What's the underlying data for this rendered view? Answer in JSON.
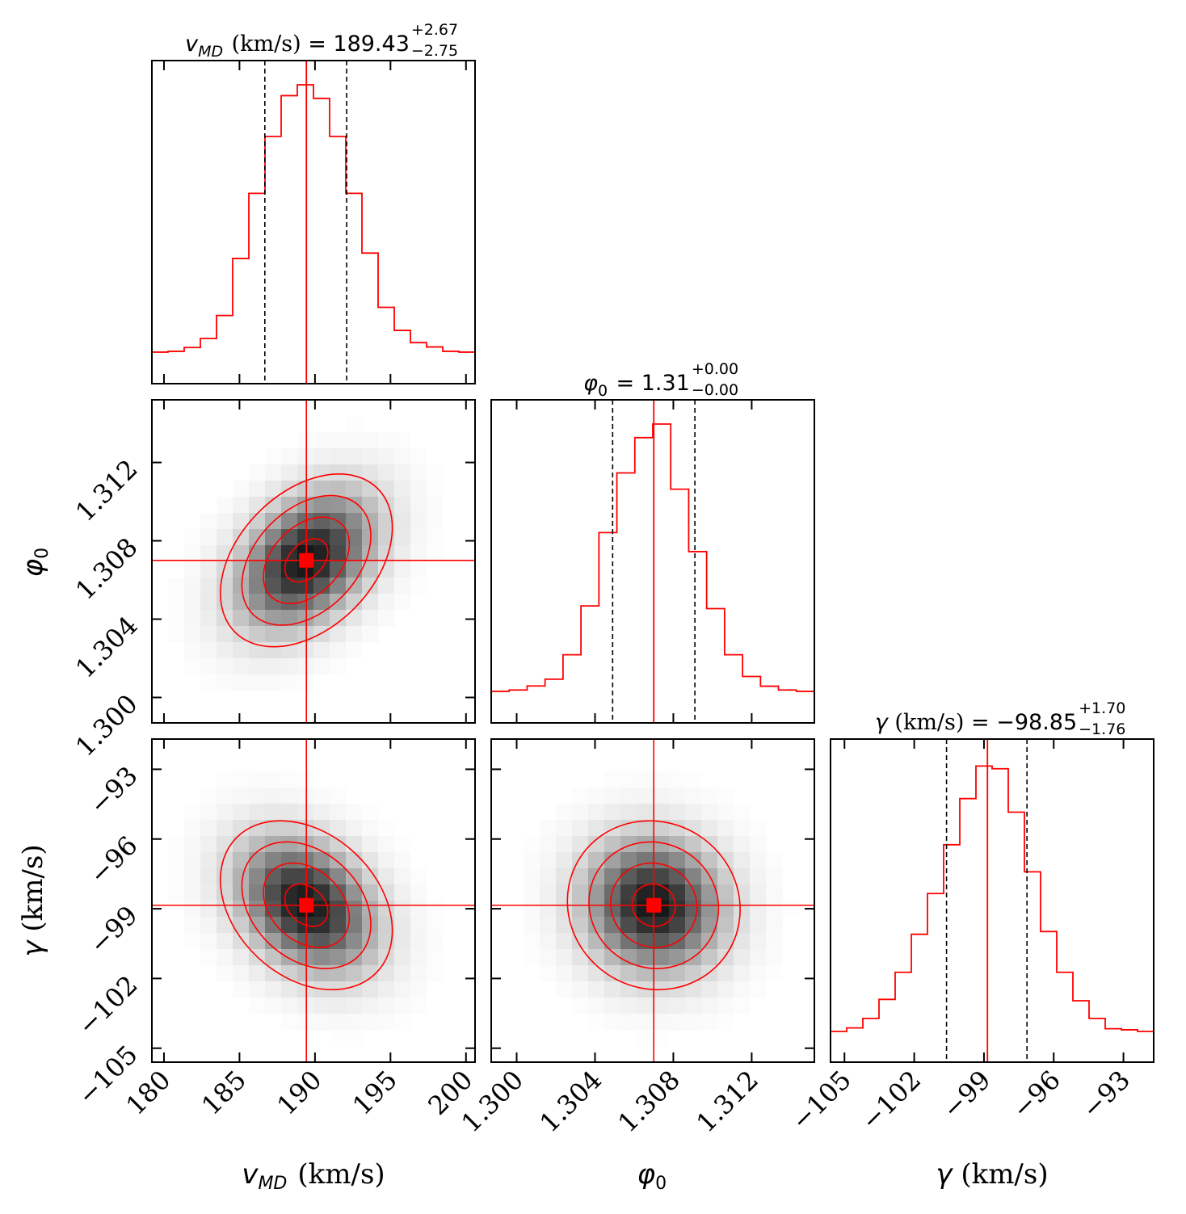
{
  "chart_data": {
    "type": "corner",
    "parameters": [
      {
        "key": "vmd",
        "label_sym": "v",
        "label_sub": "MD",
        "label_unit": " (km/s)",
        "range": [
          179.2,
          200.6
        ],
        "ticks": [
          180,
          185,
          190,
          195,
          200
        ],
        "tick_labels": [
          "180",
          "185",
          "190",
          "195",
          "200"
        ],
        "median": 189.43,
        "lo": 186.68,
        "hi": 192.1
      },
      {
        "key": "phi0",
        "label_sym": "φ",
        "label_sub": "0",
        "label_unit": "",
        "range": [
          1.2987,
          1.3152
        ],
        "ticks": [
          1.3,
          1.304,
          1.308,
          1.312
        ],
        "tick_labels": [
          "1.300",
          "1.304",
          "1.308",
          "1.312"
        ],
        "median": 1.307,
        "lo": 1.3049,
        "hi": 1.3091
      },
      {
        "key": "gamma",
        "label_sym": "γ",
        "label_sub": "",
        "label_unit": " (km/s)",
        "range": [
          -105.6,
          -91.7
        ],
        "ticks": [
          -105,
          -102,
          -99,
          -96,
          -93
        ],
        "tick_labels": [
          "−105",
          "−102",
          "−99",
          "−96",
          "−93"
        ],
        "median": -98.85,
        "lo": -100.61,
        "hi": -97.15
      }
    ],
    "titles": [
      {
        "sym": "v",
        "sub": "MD",
        "unit": " (km/s)",
        "value": " = 189.43",
        "plus": "+2.67",
        "minus": "−2.75"
      },
      {
        "sym": "φ",
        "sub": "0",
        "unit": "",
        "value": " = 1.31",
        "plus": "+0.00",
        "minus": "−0.00"
      },
      {
        "sym": "γ",
        "sub": "",
        "unit": " (km/s)",
        "value": " = −98.85",
        "plus": "+1.70",
        "minus": "−1.76"
      }
    ],
    "histograms": [
      [
        0.015,
        0.018,
        0.032,
        0.065,
        0.15,
        0.36,
        0.6,
        0.81,
        0.96,
        1.0,
        0.95,
        0.81,
        0.6,
        0.38,
        0.18,
        0.095,
        0.05,
        0.034,
        0.018,
        0.015
      ],
      [
        0.015,
        0.02,
        0.035,
        0.06,
        0.15,
        0.33,
        0.6,
        0.82,
        0.95,
        1.0,
        0.76,
        0.53,
        0.32,
        0.15,
        0.07,
        0.034,
        0.02,
        0.015
      ],
      [
        0.012,
        0.025,
        0.06,
        0.13,
        0.23,
        0.37,
        0.52,
        0.7,
        0.87,
        0.99,
        0.98,
        0.82,
        0.6,
        0.38,
        0.23,
        0.125,
        0.06,
        0.022,
        0.018,
        0.012
      ]
    ],
    "correlations": {
      "phi0_vs_vmd": 0.38,
      "gamma_vs_vmd": -0.3,
      "gamma_vs_phi0": -0.05
    },
    "contour_levels_sigma": [
      0.5,
      1.0,
      1.5,
      2.0
    ],
    "line_color": "#ff0000"
  }
}
